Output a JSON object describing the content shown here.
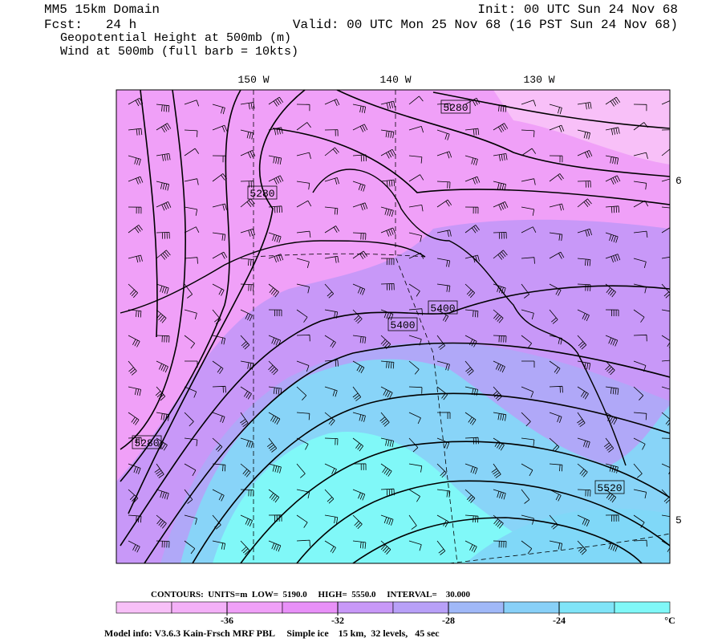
{
  "header": {
    "title": "MM5 15km Domain",
    "init": "Init: 00 UTC Sun 24 Nov 68",
    "forecast": "Fcst:   24 h",
    "valid": "Valid: 00 UTC Mon 25 Nov 68 (16 PST Sun 24 Nov 68)",
    "fields": [
      "Geopotential Height at 500mb (m)",
      "Wind at 500mb (full barb = 10kts)"
    ]
  },
  "map": {
    "longitude_labels": [
      "150 W",
      "140 W",
      "130 W"
    ],
    "latitude_labels": [
      "6",
      "5"
    ],
    "contour_labels": [
      "5280",
      "5280",
      "5280",
      "5400",
      "5400",
      "5520"
    ]
  },
  "footer": {
    "contours_info": "CONTOURS:  UNITS=m  LOW=  5190.0     HIGH=  5550.0     INTERVAL=    30.000",
    "colorbar": {
      "range": [
        -40,
        -20
      ],
      "ticks": [
        -36,
        -32,
        -28,
        -24
      ],
      "unit": "°C",
      "colors": [
        "#f8c0f8",
        "#f4b0f8",
        "#f0a0f8",
        "#e890f8",
        "#c898f8",
        "#b8a0f8",
        "#a0b8f8",
        "#88d0f8",
        "#80e4f8",
        "#80f8f8"
      ]
    },
    "model_info": "Model info: V3.6.3 Kain-Frsch MRF PBL     Simple ice    15 km,  32 levels,   45 sec"
  }
}
